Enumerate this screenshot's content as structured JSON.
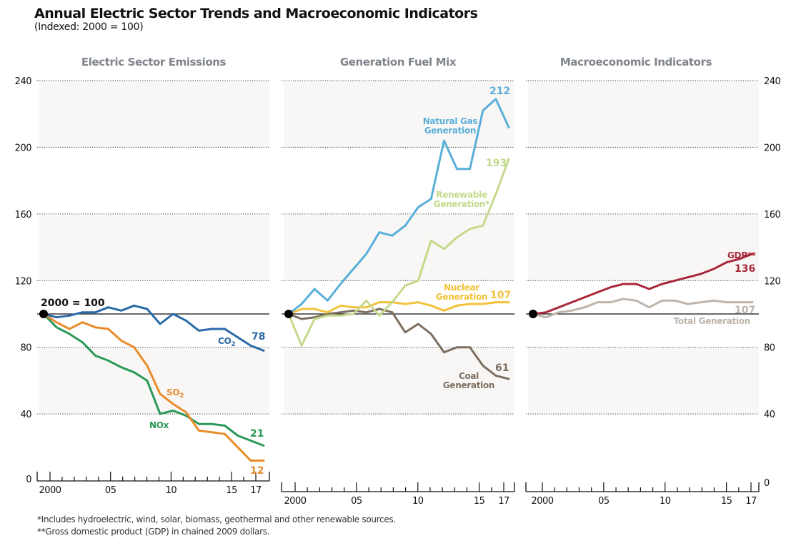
{
  "title": "Annual Electric Sector Trends and Macroeconomic Indicators",
  "subtitle": "(Indexed: 2000 = 100)",
  "footnotes": [
    "*Includes hydroelectric, wind, solar, biomass, geothermal and other renewable sources.",
    "**Gross domestic product (GDP) in chained 2009 dollars."
  ],
  "baseline_label": "2000 = 100",
  "chart_data": [
    {
      "type": "line",
      "title": "Electric Sector Emissions",
      "x": [
        2000,
        2001,
        2002,
        2003,
        2004,
        2005,
        2006,
        2007,
        2008,
        2009,
        2010,
        2011,
        2012,
        2013,
        2014,
        2015,
        2016,
        2017
      ],
      "xtick_labels": [
        "2000",
        "05",
        "10",
        "15",
        "17"
      ],
      "xticks": [
        2000,
        2005,
        2010,
        2015,
        2017
      ],
      "ylim": [
        0,
        240
      ],
      "yticks": [
        0,
        40,
        80,
        120,
        160,
        200,
        240
      ],
      "ytick_side": "left",
      "baseline": 100,
      "series": [
        {
          "name": "CO2",
          "label": "CO",
          "label_sub": "2",
          "end_label": "78",
          "color": "#2a6aa8",
          "values": [
            100,
            98,
            99,
            101,
            101,
            104,
            102,
            105,
            103,
            94,
            100,
            96,
            90,
            91,
            91,
            86,
            81,
            78
          ]
        },
        {
          "name": "SO2",
          "label": "SO",
          "label_sub": "2",
          "end_label": "12",
          "color": "#e98c2c",
          "values": [
            100,
            95,
            91,
            95,
            92,
            91,
            84,
            80,
            69,
            52,
            46,
            41,
            30,
            29,
            28,
            20,
            12,
            12
          ]
        },
        {
          "name": "NOx",
          "label": "NOx",
          "label_sub": "",
          "end_label": "21",
          "color": "#2a9a58",
          "values": [
            100,
            92,
            88,
            83,
            75,
            72,
            68,
            65,
            60,
            40,
            42,
            39,
            34,
            34,
            33,
            27,
            24,
            21
          ]
        }
      ]
    },
    {
      "type": "line",
      "title": "Generation Fuel Mix",
      "x": [
        2000,
        2001,
        2002,
        2003,
        2004,
        2005,
        2006,
        2007,
        2008,
        2009,
        2010,
        2011,
        2012,
        2013,
        2014,
        2015,
        2016,
        2017
      ],
      "xtick_labels": [
        "2000",
        "05",
        "10",
        "15",
        "17"
      ],
      "xticks": [
        2000,
        2005,
        2010,
        2015,
        2017
      ],
      "ylim": [
        0,
        240
      ],
      "yticks": [
        40,
        80,
        120,
        160,
        200,
        240
      ],
      "ytick_side": "none",
      "baseline": 100,
      "series": [
        {
          "name": "Natural Gas Generation",
          "label_lines": [
            "Natural Gas",
            "Generation"
          ],
          "end_label": "212",
          "color": "#5aafd9",
          "values": [
            100,
            106,
            115,
            108,
            118,
            127,
            136,
            149,
            147,
            153,
            164,
            169,
            204,
            187,
            187,
            222,
            229,
            212
          ]
        },
        {
          "name": "Renewable Generation*",
          "label_lines": [
            "Renewable",
            "Generation*"
          ],
          "end_label": "193",
          "color": "#c5d98c",
          "values": [
            100,
            81,
            97,
            99,
            99,
            100,
            108,
            99,
            107,
            117,
            120,
            144,
            139,
            146,
            151,
            153,
            172,
            193
          ]
        },
        {
          "name": "Nuclear Generation",
          "label_lines": [
            "Nuclear",
            "Generation"
          ],
          "end_label": "107",
          "color": "#f2c33a",
          "values": [
            100,
            103,
            103,
            101,
            105,
            104,
            104,
            107,
            107,
            106,
            107,
            105,
            102,
            105,
            106,
            106,
            107,
            107
          ]
        },
        {
          "name": "Coal Generation",
          "label_lines": [
            "Coal",
            "Generation"
          ],
          "end_label": "61",
          "color": "#7d6e60",
          "values": [
            100,
            97,
            98,
            100,
            101,
            102,
            101,
            103,
            101,
            89,
            94,
            88,
            77,
            80,
            80,
            69,
            63,
            61
          ]
        }
      ]
    },
    {
      "type": "line",
      "title": "Macroeconomic Indicators",
      "x": [
        2000,
        2001,
        2002,
        2003,
        2004,
        2005,
        2006,
        2007,
        2008,
        2009,
        2010,
        2011,
        2012,
        2013,
        2014,
        2015,
        2016,
        2017
      ],
      "xtick_labels": [
        "2000",
        "05",
        "10",
        "15",
        "17"
      ],
      "xticks": [
        2000,
        2005,
        2010,
        2015,
        2017
      ],
      "ylim": [
        0,
        240
      ],
      "yticks": [
        0,
        40,
        80,
        120,
        160,
        200,
        240
      ],
      "ytick_side": "right",
      "baseline": 100,
      "series": [
        {
          "name": "GDP**",
          "label_lines": [
            "GDP**"
          ],
          "end_label": "136",
          "color": "#a8283a",
          "values": [
            100,
            101,
            104,
            107,
            110,
            113,
            116,
            118,
            118,
            115,
            118,
            120,
            122,
            124,
            127,
            131,
            133,
            136
          ]
        },
        {
          "name": "Total Generation",
          "label_lines": [
            "Total Generation"
          ],
          "end_label": "107",
          "color": "#bdb5ad",
          "values": [
            100,
            98,
            101,
            102,
            104,
            107,
            107,
            109,
            108,
            104,
            108,
            108,
            106,
            107,
            108,
            107,
            107,
            107
          ]
        }
      ]
    }
  ]
}
